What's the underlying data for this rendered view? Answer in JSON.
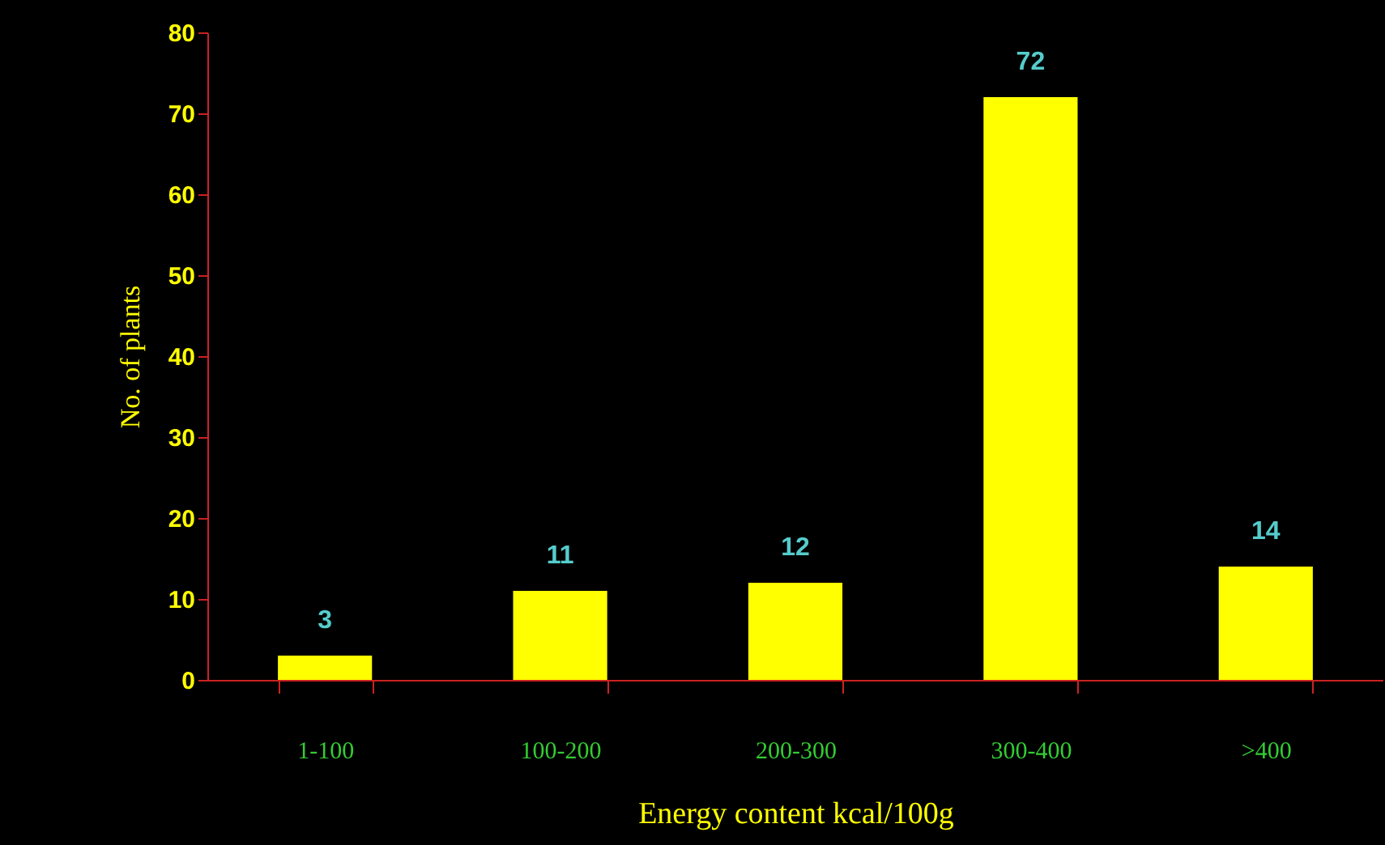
{
  "chart_data": {
    "type": "bar",
    "xlabel": "Energy content kcal/100g",
    "ylabel": "No. of plants",
    "categories": [
      "1-100",
      "100-200",
      "200-300",
      "300-400",
      ">400"
    ],
    "values": [
      3,
      11,
      12,
      72,
      14
    ],
    "color": "#ffff00",
    "ylim": [
      0,
      80
    ],
    "yticks": [
      0,
      10,
      20,
      30,
      40,
      50,
      60,
      70,
      80
    ],
    "grid": false,
    "data_labels": true
  }
}
